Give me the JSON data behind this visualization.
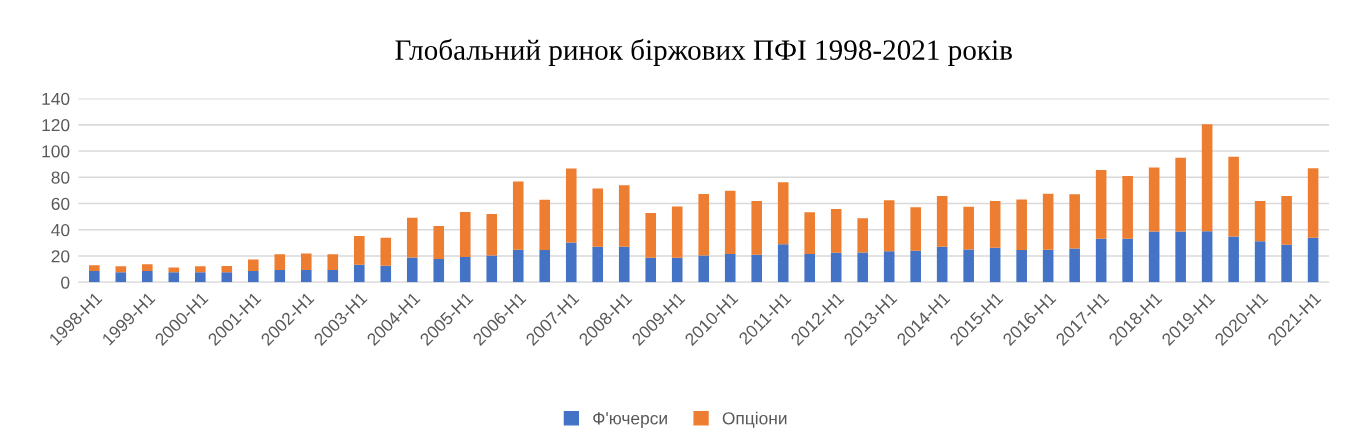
{
  "chart_data": {
    "type": "bar",
    "title": "Глобальний ринок біржових ПФІ 1998-2021 років",
    "categories": [
      "1998-H1",
      null,
      "1999-H1",
      null,
      "2000-H1",
      null,
      "2001-H1",
      null,
      "2002-H1",
      null,
      "2003-H1",
      null,
      "2004-H1",
      null,
      "2005-H1",
      null,
      "2006-H1",
      null,
      "2007-H1",
      null,
      "2008-H1",
      null,
      "2009-H1",
      null,
      "2010-H1",
      null,
      "2011-H1",
      null,
      "2012-H1",
      null,
      "2013-H1",
      null,
      "2014-H1",
      null,
      "2015-H1",
      null,
      "2016-H1",
      null,
      "2017-H1",
      null,
      "2018-H1",
      null,
      "2019-H1",
      null,
      "2020-H1",
      null,
      "2021-H1"
    ],
    "stacked": true,
    "series": [
      {
        "name": "Ф'ючерси",
        "color": "#4472c4",
        "values": [
          8.5,
          7.7,
          8.5,
          7.7,
          7.7,
          7.7,
          8.5,
          9.3,
          9.3,
          9.3,
          13.4,
          12.6,
          18.8,
          17.8,
          19.3,
          20.4,
          24.7,
          24.5,
          30.2,
          27.1,
          27.1,
          18.6,
          18.6,
          20.4,
          21.6,
          20.9,
          28.9,
          21.6,
          22.4,
          22.7,
          23.6,
          24.0,
          27.1,
          25.0,
          26.3,
          24.5,
          24.7,
          25.8,
          33.2,
          33.2,
          38.7,
          38.7,
          38.9,
          34.8,
          31.2,
          28.6,
          34.0
        ]
      },
      {
        "name": "Опціони",
        "color": "#ed7d31",
        "values": [
          4.4,
          4.4,
          5.2,
          3.6,
          4.4,
          4.7,
          8.8,
          12.1,
          12.6,
          12.1,
          21.9,
          21.4,
          30.4,
          25.0,
          34.3,
          31.7,
          52.1,
          38.4,
          56.4,
          44.3,
          46.9,
          34.2,
          39.1,
          46.9,
          48.2,
          41.0,
          47.4,
          31.8,
          33.5,
          26.0,
          38.8,
          33.2,
          38.6,
          32.5,
          35.6,
          38.6,
          42.8,
          41.2,
          52.4,
          47.7,
          48.7,
          56.1,
          81.5,
          60.8,
          30.7,
          37.1,
          52.9
        ]
      }
    ],
    "ylim": [
      0,
      140
    ],
    "yticks": [
      0,
      20,
      40,
      60,
      80,
      100,
      120,
      140
    ],
    "grid": "y",
    "legend": "bottom"
  }
}
